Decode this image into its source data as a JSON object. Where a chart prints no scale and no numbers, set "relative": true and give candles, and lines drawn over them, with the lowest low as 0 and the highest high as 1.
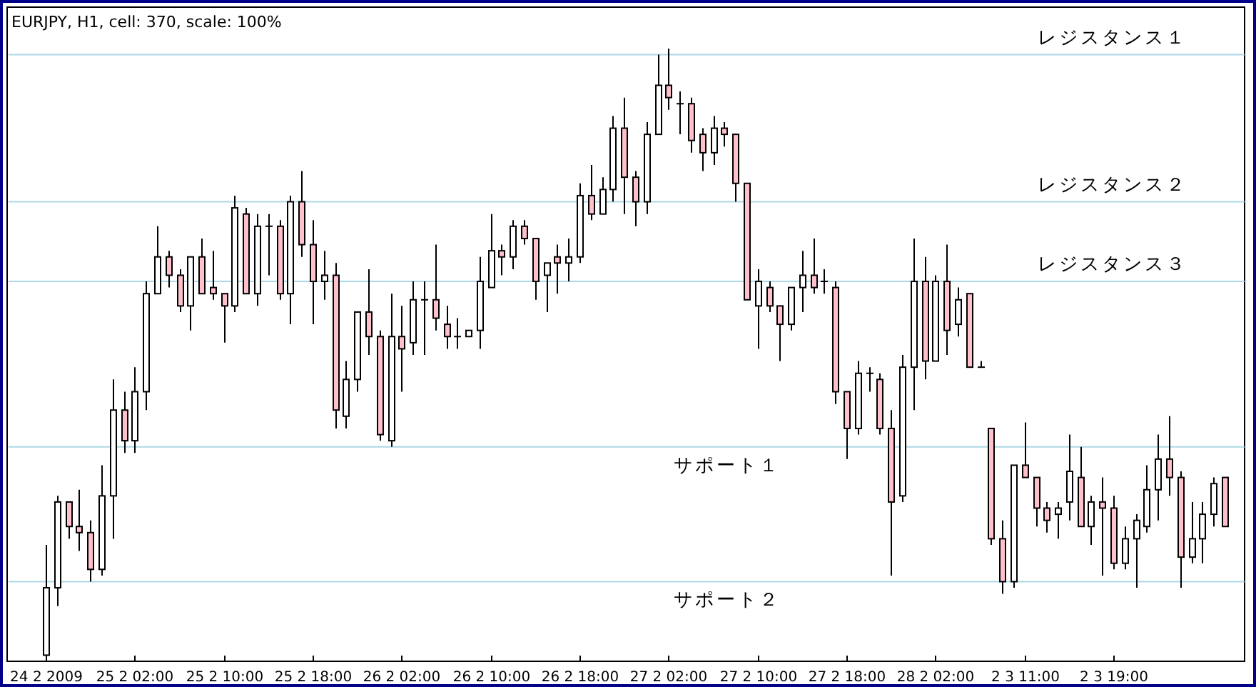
{
  "chart_data": {
    "type": "candlestick",
    "title": "EURJPY, H1, cell: 370, scale: 100%",
    "relative": true,
    "categories": [
      "24 2 2009",
      null,
      null,
      null,
      null,
      null,
      null,
      null,
      "25 2 02:00",
      null,
      null,
      null,
      null,
      null,
      null,
      null,
      "25 2 10:00",
      null,
      null,
      null,
      null,
      null,
      null,
      null,
      "25 2 18:00",
      null,
      null,
      null,
      null,
      null,
      null,
      null,
      "26 2 02:00",
      null,
      null,
      null,
      null,
      null,
      null,
      null,
      "26 2 10:00",
      null,
      null,
      null,
      null,
      null,
      null,
      null,
      "26 2 18:00",
      null,
      null,
      null,
      null,
      null,
      null,
      null,
      "27 2 02:00",
      null,
      null,
      null,
      null,
      null,
      null,
      null,
      "27 2 10:00",
      null,
      null,
      null,
      null,
      null,
      null,
      null,
      "27 2 18:00",
      null,
      null,
      null,
      null,
      null,
      null,
      null,
      "28 2 02:00",
      null,
      null,
      null,
      null,
      null,
      null,
      null,
      "2 3 11:00",
      null,
      null,
      null,
      null,
      null,
      null,
      null,
      "2 3 19:00",
      null,
      null,
      null,
      null,
      null,
      null,
      null,
      null,
      null,
      null
    ],
    "ohlc": [
      [
        0.01,
        0.19,
        0,
        0.12
      ],
      [
        0.12,
        0.27,
        0.09,
        0.26
      ],
      [
        0.26,
        0.26,
        0.2,
        0.22
      ],
      [
        0.22,
        0.28,
        0.18,
        0.21
      ],
      [
        0.21,
        0.23,
        0.13,
        0.15
      ],
      [
        0.15,
        0.32,
        0.14,
        0.27
      ],
      [
        0.27,
        0.46,
        0.2,
        0.41
      ],
      [
        0.41,
        0.44,
        0.34,
        0.36
      ],
      [
        0.36,
        0.48,
        0.34,
        0.44
      ],
      [
        0.44,
        0.62,
        0.41,
        0.6
      ],
      [
        0.6,
        0.71,
        0.6,
        0.66
      ],
      [
        0.66,
        0.67,
        0.61,
        0.63
      ],
      [
        0.63,
        0.64,
        0.57,
        0.58
      ],
      [
        0.58,
        0.66,
        0.54,
        0.66
      ],
      [
        0.66,
        0.69,
        0.6,
        0.6
      ],
      [
        0.61,
        0.67,
        0.59,
        0.6
      ],
      [
        0.6,
        0.6,
        0.52,
        0.58
      ],
      [
        0.58,
        0.76,
        0.57,
        0.74
      ],
      [
        0.73,
        0.74,
        0.6,
        0.6
      ],
      [
        0.6,
        0.73,
        0.58,
        0.71
      ],
      [
        0.71,
        0.73,
        0.63,
        0.71
      ],
      [
        0.71,
        0.72,
        0.59,
        0.6
      ],
      [
        0.6,
        0.76,
        0.55,
        0.75
      ],
      [
        0.75,
        0.8,
        0.66,
        0.68
      ],
      [
        0.68,
        0.72,
        0.55,
        0.62
      ],
      [
        0.62,
        0.67,
        0.59,
        0.63
      ],
      [
        0.63,
        0.65,
        0.38,
        0.41
      ],
      [
        0.4,
        0.49,
        0.38,
        0.46
      ],
      [
        0.46,
        0.57,
        0.44,
        0.57
      ],
      [
        0.57,
        0.64,
        0.5,
        0.53
      ],
      [
        0.53,
        0.54,
        0.36,
        0.37
      ],
      [
        0.36,
        0.6,
        0.35,
        0.53
      ],
      [
        0.53,
        0.58,
        0.44,
        0.51
      ],
      [
        0.52,
        0.62,
        0.5,
        0.59
      ],
      [
        0.59,
        0.62,
        0.5,
        0.59
      ],
      [
        0.59,
        0.68,
        0.54,
        0.56
      ],
      [
        0.55,
        0.58,
        0.51,
        0.53
      ],
      [
        0.53,
        0.56,
        0.51,
        0.53
      ],
      [
        0.53,
        0.54,
        0.53,
        0.54
      ],
      [
        0.54,
        0.66,
        0.51,
        0.62
      ],
      [
        0.61,
        0.73,
        0.61,
        0.67
      ],
      [
        0.67,
        0.68,
        0.63,
        0.66
      ],
      [
        0.66,
        0.72,
        0.64,
        0.71
      ],
      [
        0.71,
        0.72,
        0.68,
        0.69
      ],
      [
        0.69,
        0.69,
        0.59,
        0.62
      ],
      [
        0.63,
        0.65,
        0.57,
        0.65
      ],
      [
        0.66,
        0.68,
        0.6,
        0.65
      ],
      [
        0.65,
        0.69,
        0.62,
        0.66
      ],
      [
        0.66,
        0.78,
        0.65,
        0.76
      ],
      [
        0.76,
        0.81,
        0.72,
        0.73
      ],
      [
        0.73,
        0.79,
        0.73,
        0.77
      ],
      [
        0.77,
        0.89,
        0.75,
        0.87
      ],
      [
        0.87,
        0.92,
        0.73,
        0.79
      ],
      [
        0.79,
        0.8,
        0.71,
        0.75
      ],
      [
        0.75,
        0.88,
        0.73,
        0.86
      ],
      [
        0.86,
        0.99,
        0.86,
        0.94
      ],
      [
        0.94,
        1.0,
        0.9,
        0.92
      ],
      [
        0.91,
        0.93,
        0.86,
        0.91
      ],
      [
        0.91,
        0.92,
        0.83,
        0.85
      ],
      [
        0.86,
        0.87,
        0.8,
        0.83
      ],
      [
        0.83,
        0.89,
        0.81,
        0.87
      ],
      [
        0.87,
        0.88,
        0.84,
        0.86
      ],
      [
        0.86,
        0.86,
        0.75,
        0.78
      ],
      [
        0.78,
        0.78,
        0.59,
        0.59
      ],
      [
        0.58,
        0.64,
        0.51,
        0.62
      ],
      [
        0.61,
        0.62,
        0.57,
        0.58
      ],
      [
        0.58,
        0.58,
        0.49,
        0.55
      ],
      [
        0.55,
        0.61,
        0.54,
        0.61
      ],
      [
        0.61,
        0.67,
        0.57,
        0.63
      ],
      [
        0.63,
        0.69,
        0.6,
        0.61
      ],
      [
        0.62,
        0.64,
        0.6,
        0.62
      ],
      [
        0.61,
        0.62,
        0.42,
        0.44
      ],
      [
        0.44,
        0.44,
        0.33,
        0.38
      ],
      [
        0.38,
        0.49,
        0.37,
        0.47
      ],
      [
        0.47,
        0.48,
        0.44,
        0.47
      ],
      [
        0.46,
        0.47,
        0.37,
        0.38
      ],
      [
        0.38,
        0.41,
        0.14,
        0.26
      ],
      [
        0.27,
        0.5,
        0.26,
        0.48
      ],
      [
        0.48,
        0.69,
        0.41,
        0.62
      ],
      [
        0.62,
        0.66,
        0.46,
        0.49
      ],
      [
        0.49,
        0.63,
        0.49,
        0.62
      ],
      [
        0.62,
        0.68,
        0.5,
        0.54
      ],
      [
        0.55,
        0.61,
        0.53,
        0.59
      ],
      [
        0.6,
        0.6,
        0.48,
        0.48
      ],
      [
        0.48,
        0.49,
        0.48,
        0.48
      ],
      [
        0.38,
        0.38,
        0.19,
        0.2
      ],
      [
        0.2,
        0.23,
        0.11,
        0.13
      ],
      [
        0.13,
        0.32,
        0.12,
        0.32
      ],
      [
        0.32,
        0.39,
        0.3,
        0.3
      ],
      [
        0.3,
        0.3,
        0.22,
        0.25
      ],
      [
        0.25,
        0.26,
        0.21,
        0.23
      ],
      [
        0.24,
        0.26,
        0.2,
        0.25
      ],
      [
        0.26,
        0.37,
        0.23,
        0.31
      ],
      [
        0.3,
        0.35,
        0.22,
        0.22
      ],
      [
        0.22,
        0.27,
        0.19,
        0.26
      ],
      [
        0.26,
        0.3,
        0.14,
        0.25
      ],
      [
        0.25,
        0.27,
        0.15,
        0.16
      ],
      [
        0.16,
        0.22,
        0.15,
        0.2
      ],
      [
        0.2,
        0.24,
        0.12,
        0.23
      ],
      [
        0.22,
        0.32,
        0.21,
        0.28
      ],
      [
        0.28,
        0.37,
        0.23,
        0.33
      ],
      [
        0.33,
        0.4,
        0.27,
        0.3
      ],
      [
        0.3,
        0.31,
        0.12,
        0.17
      ],
      [
        0.17,
        0.26,
        0.16,
        0.2
      ],
      [
        0.2,
        0.26,
        0.16,
        0.24
      ],
      [
        0.24,
        0.3,
        0.22,
        0.29
      ],
      [
        0.3,
        0.3,
        0.22,
        0.22
      ]
    ],
    "ref_lines": [
      {
        "axis": "y",
        "value": 0.99,
        "label": "レジスタンス１",
        "color": "#add8e6"
      },
      {
        "axis": "y",
        "value": 0.75,
        "label": "レジスタンス２",
        "color": "#add8e6"
      },
      {
        "axis": "y",
        "value": 0.62,
        "label": "レジスタンス３",
        "color": "#add8e6"
      },
      {
        "axis": "y",
        "value": 0.35,
        "label": "サポート１",
        "color": "#add8e6"
      },
      {
        "axis": "y",
        "value": 0.13,
        "label": "サポート２",
        "color": "#add8e6"
      }
    ]
  }
}
